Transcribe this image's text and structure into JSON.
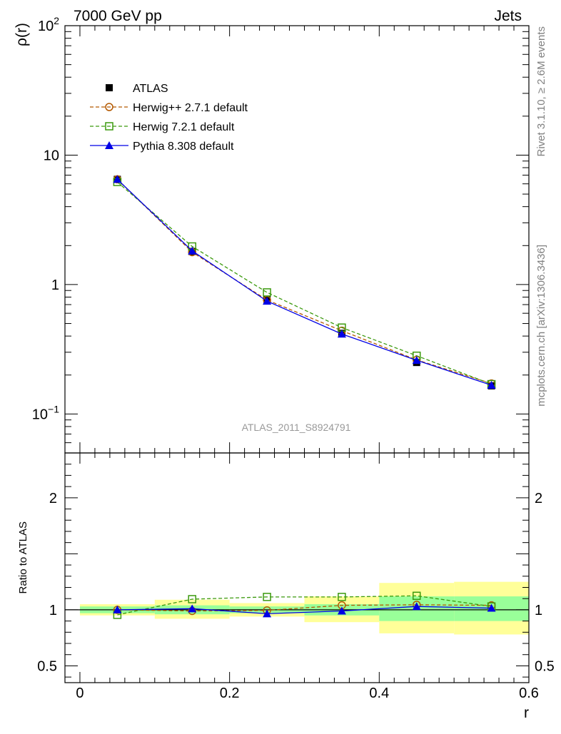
{
  "header": {
    "left_label": "7000 GeV pp",
    "right_label": "Jets"
  },
  "side_labels": {
    "rivet": "Rivet 3.1.10, ≥ 2.6M events",
    "mcplots": "mcplots.cern.ch [arXiv:1306.3436]"
  },
  "analysis_label": "ATLAS_2011_S8924791",
  "colors": {
    "atlas": "#000000",
    "herwigpp": "#b35900",
    "herwig7": "#3c9a0e",
    "pythia": "#0000e6",
    "band_outer": "#ffff99",
    "band_inner": "#99ff99"
  },
  "chart_data": [
    {
      "type": "scatter",
      "panel": "main",
      "ylabel": "ρ(r)",
      "yscale": "log",
      "ylim": [
        0.05,
        100
      ],
      "xlim": [
        -0.02,
        0.6
      ],
      "yticks": [
        {
          "value": 0.1,
          "base": "10",
          "exp": "−1"
        },
        {
          "value": 1,
          "label": "1"
        },
        {
          "value": 10,
          "label": "10"
        },
        {
          "value": 100,
          "base": "10",
          "exp": "2"
        }
      ],
      "grid": false,
      "legend_position": "top-left",
      "series": [
        {
          "name": "ATLAS",
          "marker": "filled-square",
          "line": "none",
          "x": [
            0.05,
            0.15,
            0.25,
            0.35,
            0.45,
            0.55
          ],
          "y": [
            6.5,
            1.8,
            0.77,
            0.42,
            0.25,
            0.165
          ]
        },
        {
          "name": "Herwig++ 2.7.1 default",
          "marker": "open-circle",
          "line": "dashed",
          "x": [
            0.05,
            0.15,
            0.25,
            0.35,
            0.45,
            0.55
          ],
          "y": [
            6.5,
            1.78,
            0.76,
            0.44,
            0.262,
            0.172
          ]
        },
        {
          "name": "Herwig 7.2.1 default",
          "marker": "open-square",
          "line": "dashed",
          "x": [
            0.05,
            0.15,
            0.25,
            0.35,
            0.45,
            0.55
          ],
          "y": [
            6.2,
            1.97,
            0.87,
            0.465,
            0.282,
            0.17
          ]
        },
        {
          "name": "Pythia 8.308 default",
          "marker": "filled-triangle",
          "line": "solid",
          "x": [
            0.05,
            0.15,
            0.25,
            0.35,
            0.45,
            0.55
          ],
          "y": [
            6.5,
            1.82,
            0.745,
            0.415,
            0.26,
            0.167
          ]
        }
      ]
    },
    {
      "type": "scatter",
      "panel": "ratio",
      "xlabel": "r",
      "ylabel": "Ratio to ATLAS",
      "xlim": [
        -0.02,
        0.6
      ],
      "ylim": [
        0.35,
        2.4
      ],
      "xticks": [
        {
          "value": 0,
          "label": "0"
        },
        {
          "value": 0.2,
          "label": "0.2"
        },
        {
          "value": 0.4,
          "label": "0.4"
        },
        {
          "value": 0.6,
          "label": "0.6"
        }
      ],
      "yticks": [
        {
          "value": 0.5,
          "label": "0.5"
        },
        {
          "value": 1,
          "label": "1"
        },
        {
          "value": 2,
          "label": "2"
        }
      ],
      "grid": false,
      "bands": [
        {
          "x0": 0.0,
          "x1": 0.1,
          "outer": [
            0.95,
            1.05
          ],
          "inner": [
            0.97,
            1.03
          ]
        },
        {
          "x0": 0.1,
          "x1": 0.2,
          "outer": [
            0.92,
            1.09
          ],
          "inner": [
            0.96,
            1.04
          ]
        },
        {
          "x0": 0.2,
          "x1": 0.3,
          "outer": [
            0.94,
            1.06
          ],
          "inner": [
            0.97,
            1.03
          ]
        },
        {
          "x0": 0.3,
          "x1": 0.4,
          "outer": [
            0.89,
            1.12
          ],
          "inner": [
            0.95,
            1.05
          ]
        },
        {
          "x0": 0.4,
          "x1": 0.5,
          "outer": [
            0.79,
            1.24
          ],
          "inner": [
            0.9,
            1.12
          ]
        },
        {
          "x0": 0.5,
          "x1": 0.6,
          "outer": [
            0.78,
            1.25
          ],
          "inner": [
            0.9,
            1.12
          ]
        }
      ],
      "series": [
        {
          "name": "Herwig++ 2.7.1 default",
          "marker": "open-circle",
          "line": "dashed",
          "x": [
            0.05,
            0.15,
            0.25,
            0.35,
            0.45,
            0.55
          ],
          "y": [
            1.0,
            0.99,
            0.995,
            1.04,
            1.045,
            1.04
          ]
        },
        {
          "name": "Herwig 7.2.1 default",
          "marker": "open-square",
          "line": "dashed",
          "x": [
            0.05,
            0.15,
            0.25,
            0.35,
            0.45,
            0.55
          ],
          "y": [
            0.955,
            1.095,
            1.115,
            1.115,
            1.125,
            1.03
          ]
        },
        {
          "name": "Pythia 8.308 default",
          "marker": "filled-triangle",
          "line": "solid",
          "x": [
            0.05,
            0.15,
            0.25,
            0.35,
            0.45,
            0.55
          ],
          "y": [
            1.0,
            1.01,
            0.965,
            0.99,
            1.03,
            1.015
          ]
        }
      ]
    }
  ]
}
